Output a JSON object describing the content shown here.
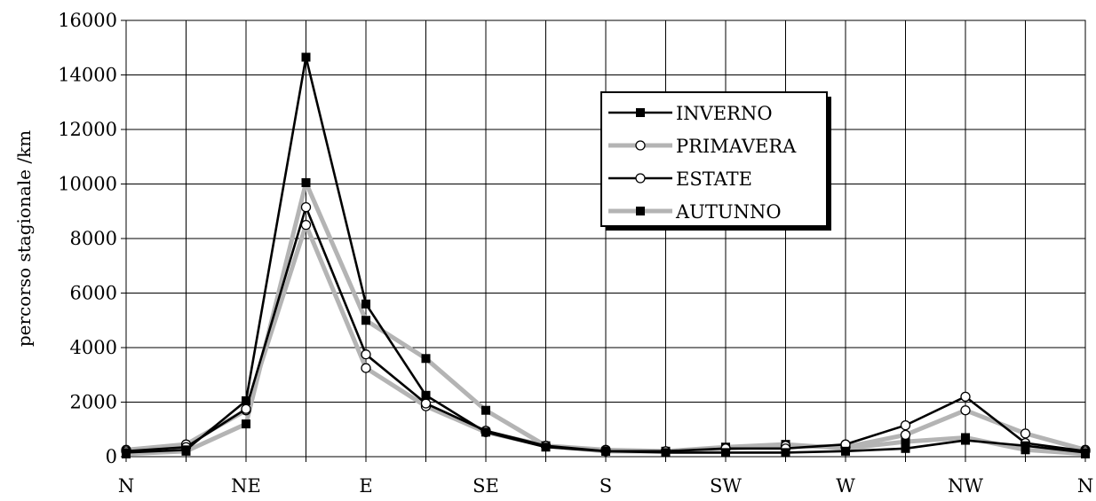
{
  "chart_data": {
    "type": "line",
    "title": "",
    "xlabel": "",
    "ylabel": "percorso stagionale /km",
    "ylim": [
      0,
      16000
    ],
    "yticks": [
      0,
      2000,
      4000,
      6000,
      8000,
      10000,
      12000,
      14000,
      16000
    ],
    "xticklabels": [
      "N",
      "",
      "NE",
      "",
      "E",
      "",
      "SE",
      "",
      "S",
      "",
      "SW",
      "",
      "W",
      "",
      "NW",
      "",
      "N"
    ],
    "grid": true,
    "legend_position": "top-right",
    "series": [
      {
        "name": "INVERNO",
        "color": "#000000",
        "marker": "square-filled",
        "values": [
          150,
          250,
          2050,
          14650,
          5600,
          2250,
          900,
          350,
          200,
          150,
          150,
          150,
          200,
          300,
          600,
          400,
          150
        ]
      },
      {
        "name": "PRIMAVERA",
        "color": "#b4b4b4",
        "marker": "circle-open",
        "values": [
          250,
          450,
          1700,
          8500,
          3250,
          1850,
          900,
          400,
          250,
          200,
          300,
          400,
          350,
          800,
          1700,
          850,
          250
        ]
      },
      {
        "name": "ESTATE",
        "color": "#000000",
        "marker": "circle-open",
        "values": [
          200,
          350,
          1750,
          9150,
          3750,
          1950,
          950,
          400,
          200,
          200,
          300,
          300,
          450,
          1150,
          2200,
          500,
          200
        ]
      },
      {
        "name": "AUTUNNO",
        "color": "#b4b4b4",
        "marker": "square-filled",
        "values": [
          100,
          200,
          1200,
          10050,
          5000,
          3600,
          1700,
          400,
          200,
          200,
          350,
          450,
          300,
          550,
          700,
          250,
          100
        ]
      }
    ]
  }
}
